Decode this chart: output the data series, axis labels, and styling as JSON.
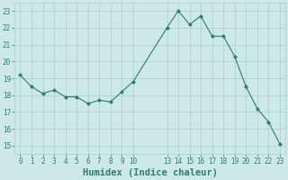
{
  "x": [
    0,
    1,
    2,
    3,
    4,
    5,
    6,
    7,
    8,
    9,
    10,
    13,
    14,
    15,
    16,
    17,
    18,
    19,
    20,
    21,
    22,
    23
  ],
  "y": [
    19.2,
    18.5,
    18.1,
    18.3,
    17.9,
    17.9,
    17.5,
    17.7,
    17.6,
    18.2,
    18.8,
    22.0,
    23.0,
    22.2,
    22.7,
    21.5,
    21.5,
    20.3,
    18.5,
    17.2,
    16.4,
    15.1
  ],
  "line_color": "#2e7d6e",
  "marker": "D",
  "marker_size": 2.0,
  "bg_color": "#cce8e8",
  "grid_color": "#aacece",
  "xlabel": "Humidex (Indice chaleur)",
  "xlim": [
    -0.5,
    23.5
  ],
  "ylim": [
    14.5,
    23.5
  ],
  "yticks": [
    15,
    16,
    17,
    18,
    19,
    20,
    21,
    22,
    23
  ],
  "xticks": [
    0,
    1,
    2,
    3,
    4,
    5,
    6,
    7,
    8,
    9,
    10,
    13,
    14,
    15,
    16,
    17,
    18,
    19,
    20,
    21,
    22,
    23
  ],
  "tick_fontsize": 5.5,
  "xlabel_fontsize": 7.5,
  "tick_color": "#2e7d6e",
  "xlabel_color": "#2e7d6e"
}
